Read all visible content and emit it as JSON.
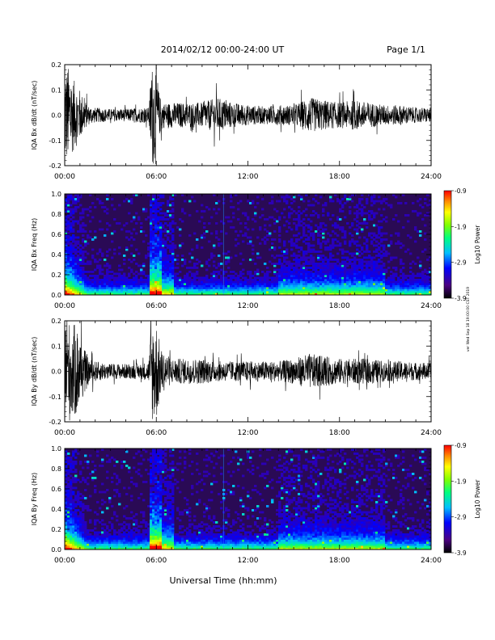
{
  "header": {
    "title": "2014/02/12  00:00-24:00 UT",
    "page": "Page 1/1"
  },
  "footer": {
    "xlabel": "Universal Time (hh:mm)",
    "side_note": "ver Wed Sep 18 19:00:00 CST 2019"
  },
  "colors": {
    "colorbar": [
      "#000000",
      "#4b0082",
      "#0000ff",
      "#00bfff",
      "#00ff7f",
      "#7fff00",
      "#ffff00",
      "#ff8c00",
      "#ff0000"
    ],
    "trace": "#000000",
    "spectrogram_background": "#2a0a55"
  },
  "chart_data": [
    {
      "type": "line",
      "ylabel": "IQA Bx dB/dt (nT/sec)",
      "x_ticks": [
        "00:00",
        "06:00",
        "12:00",
        "18:00",
        "24:00"
      ],
      "xlim": [
        0,
        24
      ],
      "ylim": [
        -0.2,
        0.2
      ],
      "y_ticks": [
        "0.2",
        "0.1",
        "0.0",
        "-0.1",
        "-0.2"
      ],
      "activity_envelope": {
        "x": [
          0,
          0.2,
          0.5,
          1.0,
          1.5,
          2.0,
          3.0,
          4.0,
          5.0,
          5.5,
          5.7,
          6.0,
          6.2,
          6.5,
          7.0,
          8.0,
          9.0,
          10.0,
          11.0,
          12.0,
          13.0,
          14.0,
          15.0,
          16.0,
          17.0,
          18.0,
          19.0,
          20.0,
          21.0,
          22.0,
          23.0,
          24.0
        ],
        "amplitude": [
          0.2,
          0.2,
          0.15,
          0.1,
          0.04,
          0.03,
          0.025,
          0.025,
          0.03,
          0.03,
          0.2,
          0.2,
          0.08,
          0.05,
          0.05,
          0.05,
          0.05,
          0.07,
          0.05,
          0.04,
          0.035,
          0.04,
          0.04,
          0.07,
          0.06,
          0.05,
          0.06,
          0.05,
          0.04,
          0.04,
          0.03,
          0.03
        ]
      }
    },
    {
      "type": "heatmap",
      "ylabel": "IQA Bx Freq (Hz)",
      "x_ticks": [
        "00:00",
        "06:00",
        "12:00",
        "18:00",
        "24:00"
      ],
      "xlim": [
        0,
        24
      ],
      "ylim": [
        0,
        1.0
      ],
      "y_ticks": [
        "1.0",
        "0.8",
        "0.6",
        "0.4",
        "0.2",
        "0.0"
      ],
      "colorbar_label": "Log10 Power",
      "colorbar_ticks": [
        "-0.9",
        "-1.9",
        "-2.9",
        "-3.9"
      ],
      "clim": [
        -3.9,
        -0.9
      ]
    },
    {
      "type": "line",
      "ylabel": "IQA By dB/dt (nT/sec)",
      "x_ticks": [
        "00:00",
        "06:00",
        "12:00",
        "18:00",
        "24:00"
      ],
      "xlim": [
        0,
        24
      ],
      "ylim": [
        -0.2,
        0.2
      ],
      "y_ticks": [
        "0.2",
        "0.1",
        "0.0",
        "-0.1",
        "-0.2"
      ],
      "activity_envelope": {
        "x": [
          0,
          0.3,
          0.8,
          1.2,
          1.6,
          2.0,
          3.0,
          4.0,
          5.0,
          5.5,
          5.7,
          6.0,
          6.3,
          7.0,
          8.0,
          9.0,
          10.0,
          11.0,
          12.0,
          13.0,
          14.0,
          15.0,
          16.0,
          17.0,
          18.0,
          19.0,
          20.0,
          21.0,
          22.0,
          23.0,
          24.0
        ],
        "amplitude": [
          0.2,
          0.2,
          0.18,
          0.1,
          0.05,
          0.04,
          0.03,
          0.03,
          0.03,
          0.04,
          0.2,
          0.2,
          0.09,
          0.05,
          0.05,
          0.05,
          0.04,
          0.04,
          0.04,
          0.04,
          0.04,
          0.05,
          0.07,
          0.06,
          0.05,
          0.05,
          0.05,
          0.04,
          0.04,
          0.035,
          0.035
        ]
      }
    },
    {
      "type": "heatmap",
      "ylabel": "IQA By Freq (Hz)",
      "x_ticks": [
        "00:00",
        "06:00",
        "12:00",
        "18:00",
        "24:00"
      ],
      "xlim": [
        0,
        24
      ],
      "ylim": [
        0,
        1.0
      ],
      "y_ticks": [
        "1.0",
        "0.8",
        "0.6",
        "0.4",
        "0.2",
        "0.0"
      ],
      "colorbar_label": "Log10 Power",
      "colorbar_ticks": [
        "-0.9",
        "-1.9",
        "-2.9",
        "-3.9"
      ],
      "clim": [
        -3.9,
        -0.9
      ]
    }
  ]
}
